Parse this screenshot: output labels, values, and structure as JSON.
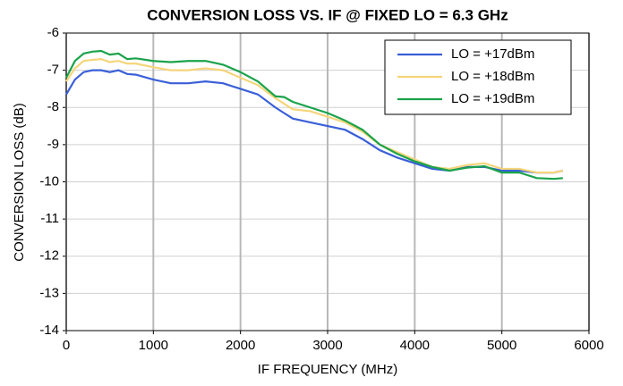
{
  "chart_data": {
    "type": "line",
    "title": "CONVERSION LOSS VS. IF @ FIXED LO = 6.3 GHz",
    "x_label": "IF FREQUENCY (MHz)",
    "y_label": "CONVERSION LOSS (dB)",
    "x": [
      0,
      100,
      200,
      300,
      400,
      500,
      600,
      700,
      800,
      1000,
      1200,
      1400,
      1600,
      1800,
      2000,
      2200,
      2400,
      2500,
      2600,
      2800,
      3000,
      3200,
      3400,
      3600,
      3800,
      4000,
      4200,
      4400,
      4600,
      4800,
      5000,
      5200,
      5400,
      5600,
      5700
    ],
    "series": [
      {
        "name": "LO = +17dBm",
        "color": "#3a5fd8",
        "values": [
          -7.65,
          -7.25,
          -7.05,
          -7.0,
          -7.0,
          -7.05,
          -7.0,
          -7.1,
          -7.12,
          -7.25,
          -7.35,
          -7.35,
          -7.3,
          -7.35,
          -7.5,
          -7.65,
          -8.0,
          -8.15,
          -8.3,
          -8.4,
          -8.5,
          -8.6,
          -8.85,
          -9.15,
          -9.35,
          -9.5,
          -9.65,
          -9.7,
          -9.6,
          -9.6,
          -9.7,
          -9.7,
          -9.75,
          -9.75,
          -9.7
        ]
      },
      {
        "name": "LO = +18dBm",
        "color": "#f5d57a",
        "values": [
          -7.3,
          -6.95,
          -6.75,
          -6.72,
          -6.7,
          -6.78,
          -6.75,
          -6.82,
          -6.82,
          -6.92,
          -7.0,
          -7.0,
          -6.95,
          -7.0,
          -7.2,
          -7.4,
          -7.75,
          -7.9,
          -8.05,
          -8.1,
          -8.25,
          -8.4,
          -8.65,
          -9.0,
          -9.2,
          -9.4,
          -9.6,
          -9.65,
          -9.55,
          -9.5,
          -9.65,
          -9.65,
          -9.75,
          -9.75,
          -9.7
        ]
      },
      {
        "name": "LO = +19dBm",
        "color": "#1aa34a",
        "values": [
          -7.2,
          -6.75,
          -6.55,
          -6.5,
          -6.48,
          -6.58,
          -6.55,
          -6.7,
          -6.68,
          -6.75,
          -6.78,
          -6.75,
          -6.75,
          -6.85,
          -7.05,
          -7.3,
          -7.7,
          -7.72,
          -7.85,
          -8.0,
          -8.15,
          -8.35,
          -8.6,
          -9.0,
          -9.25,
          -9.45,
          -9.6,
          -9.7,
          -9.62,
          -9.58,
          -9.75,
          -9.75,
          -9.9,
          -9.92,
          -9.9
        ]
      }
    ],
    "xlim": [
      0,
      6000
    ],
    "xticks": [
      0,
      1000,
      2000,
      3000,
      4000,
      5000,
      6000
    ],
    "ylim": [
      -14,
      -6
    ],
    "yticks": [
      -14,
      -13,
      -12,
      -11,
      -10,
      -9,
      -8,
      -7,
      -6
    ],
    "grid": true,
    "legend": "upper right"
  }
}
